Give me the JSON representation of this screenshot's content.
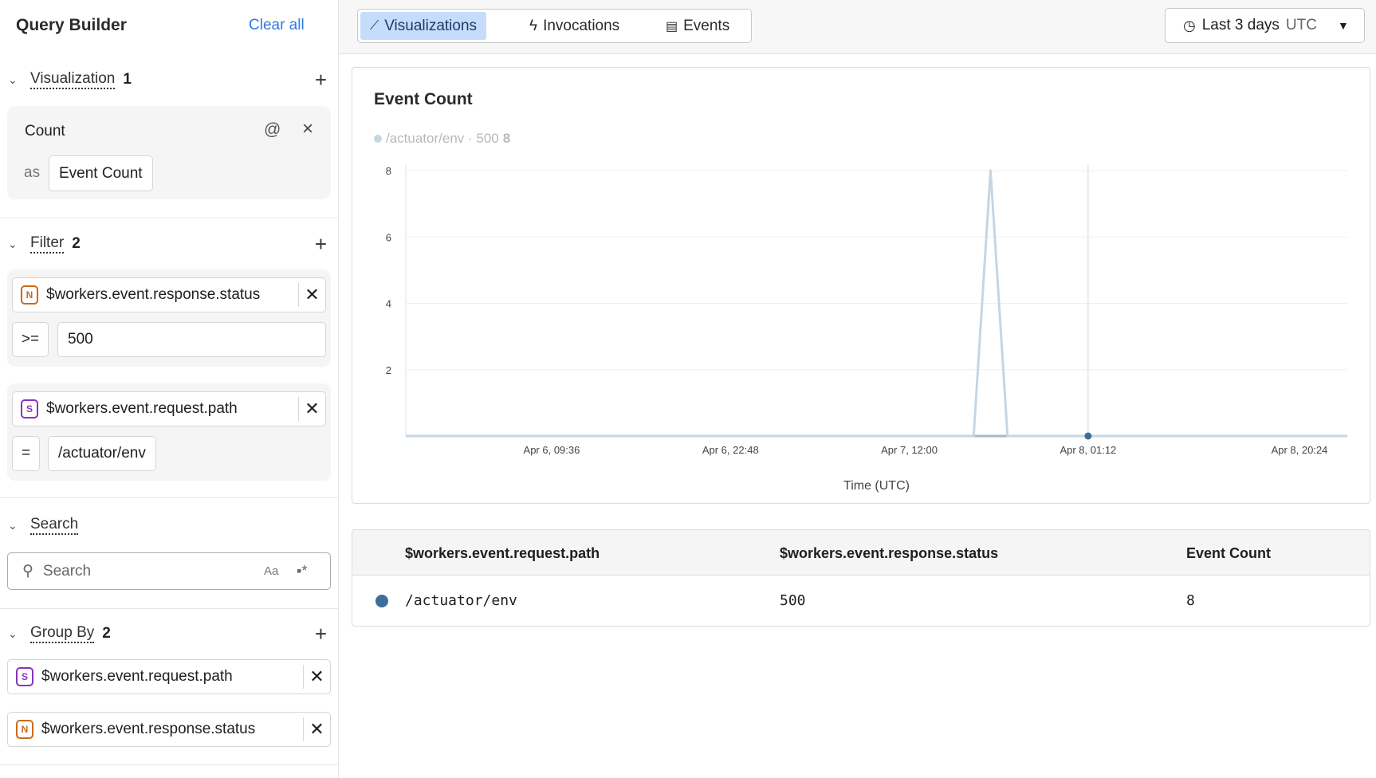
{
  "sidebar": {
    "title": "Query Builder",
    "clear_all": "Clear all",
    "visualization": {
      "label": "Visualization",
      "count": "1",
      "item": "Count",
      "as_label": "as",
      "alias": "Event Count"
    },
    "filter": {
      "label": "Filter",
      "count": "2",
      "filters": [
        {
          "type": "N",
          "field": "$workers.event.response.status",
          "operator": ">=",
          "value": "500"
        },
        {
          "type": "S",
          "field": "$workers.event.request.path",
          "operator": "=",
          "value": "/actuator/env"
        }
      ]
    },
    "search": {
      "label": "Search",
      "placeholder": "Search",
      "case_toggle": "Aa",
      "regex_icon": "regex-icon"
    },
    "group_by": {
      "label": "Group By",
      "count": "2",
      "items": [
        {
          "type": "S",
          "field": "$workers.event.request.path"
        },
        {
          "type": "N",
          "field": "$workers.event.response.status"
        }
      ]
    }
  },
  "tabs": [
    {
      "label": "Visualizations",
      "icon": "chart-line-icon",
      "active": true
    },
    {
      "label": "Invocations",
      "icon": "lightning-icon"
    },
    {
      "label": "Events",
      "icon": "events-icon"
    }
  ],
  "time_range": {
    "label": "Last 3 days",
    "tz": "UTC"
  },
  "chart_data": {
    "type": "line",
    "title": "Event Count",
    "xlabel": "Time (UTC)",
    "ylabel": "",
    "legend": {
      "text": "/actuator/env · 500",
      "value": "8",
      "placement": "top-left"
    },
    "x_range": [
      "Apr 5, 22:50",
      "Apr 8, 20:20"
    ],
    "ylim": [
      0,
      8
    ],
    "yticks": [
      2,
      4,
      6,
      8
    ],
    "xticks": [
      "Apr 6, 09:36",
      "Apr 6, 22:48",
      "Apr 7, 12:00",
      "Apr 8, 01:12",
      "Apr 8, 20:24"
    ],
    "grid": true,
    "series": [
      {
        "color": "#c5d6e4",
        "points": [
          [
            "Apr 5, 22:50",
            0
          ],
          [
            "Apr 7, 16:45",
            0
          ],
          [
            "Apr 7, 18:00",
            8
          ],
          [
            "Apr 7, 19:15",
            0
          ],
          [
            "Apr 8, 20:20",
            0
          ]
        ]
      }
    ],
    "cursor": {
      "x": "Apr 8, 01:12",
      "y": 0,
      "color": "#3d6d98"
    }
  },
  "table": {
    "headers": [
      "$workers.event.request.path",
      "$workers.event.response.status",
      "Event Count"
    ],
    "rows": [
      {
        "color": "#3d6d98",
        "cells": [
          "/actuator/env",
          "500",
          "8"
        ]
      }
    ]
  }
}
